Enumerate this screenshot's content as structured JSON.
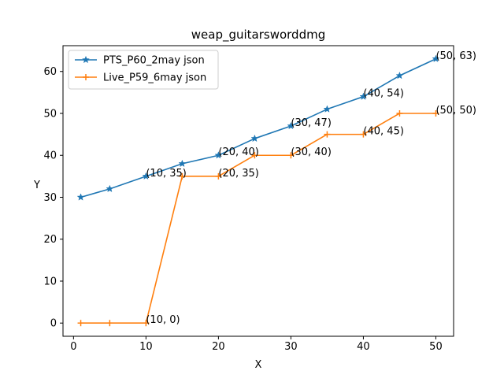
{
  "chart_data": {
    "type": "line",
    "title": "weap_guitarsworddmg",
    "xlabel": "X",
    "ylabel": "Y",
    "xlim": [
      -1.45,
      52.45
    ],
    "ylim": [
      -3.15,
      66.15
    ],
    "xticks": [
      0,
      10,
      20,
      30,
      40,
      50
    ],
    "yticks": [
      0,
      10,
      20,
      30,
      40,
      50,
      60
    ],
    "grid": false,
    "legend_position": "upper left",
    "series": [
      {
        "name": "PTS_P60_2may json",
        "color": "#1f77b4",
        "marker": "star",
        "x": [
          1,
          5,
          10,
          15,
          20,
          25,
          30,
          35,
          40,
          45,
          50
        ],
        "y": [
          30,
          32,
          35,
          38,
          40,
          44,
          47,
          51,
          54,
          59,
          63
        ]
      },
      {
        "name": "Live_P59_6may json",
        "color": "#ff7f0e",
        "marker": "plus",
        "x": [
          1,
          5,
          10,
          15,
          20,
          25,
          30,
          35,
          40,
          45,
          50
        ],
        "y": [
          0,
          0,
          0,
          35,
          35,
          40,
          40,
          45,
          45,
          50,
          50
        ]
      }
    ],
    "annotations": [
      {
        "x": 10,
        "y": 35,
        "text": "(10, 35)"
      },
      {
        "x": 20,
        "y": 40,
        "text": "(20, 40)"
      },
      {
        "x": 30,
        "y": 47,
        "text": "(30, 47)"
      },
      {
        "x": 40,
        "y": 54,
        "text": "(40, 54)"
      },
      {
        "x": 50,
        "y": 63,
        "text": "(50, 63)"
      },
      {
        "x": 10,
        "y": 0,
        "text": "(10, 0)"
      },
      {
        "x": 20,
        "y": 35,
        "text": "(20, 35)"
      },
      {
        "x": 30,
        "y": 40,
        "text": "(30, 40)"
      },
      {
        "x": 40,
        "y": 45,
        "text": "(40, 45)"
      },
      {
        "x": 50,
        "y": 50,
        "text": "(50, 50)"
      }
    ]
  }
}
